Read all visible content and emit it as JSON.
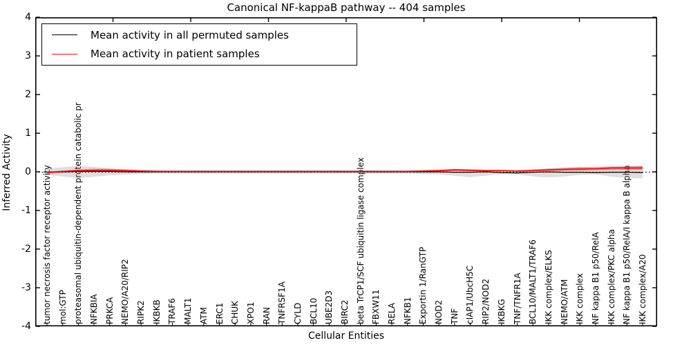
{
  "title": "Canonical NF-kappaB pathway -- 404 samples",
  "chart_data": {
    "type": "line",
    "title": "Canonical NF-kappaB pathway -- 404 samples",
    "xlabel": "Cellular Entities",
    "ylabel": "Inferred Activity",
    "ylim": [
      -4,
      4
    ],
    "yticks": [
      4,
      3,
      2,
      1,
      0,
      -1,
      -2,
      -3,
      -4
    ],
    "xticks_units": [
      5,
      10,
      15,
      20,
      25,
      30,
      35
    ],
    "grid": false,
    "legend_position": "upper left",
    "zero_line_style": "dotted",
    "background_color": "#ffffff",
    "categories": [
      "tumor necrosis factor receptor activity",
      "mol:GTP",
      "proteasomal ubiquitin-dependent protein catabolic pr",
      "NFKBIA",
      "PRKCA",
      "NEMO/A20/RIP2",
      "RIPK2",
      "IKBKB",
      "TRAF6",
      "MALT1",
      "ATM",
      "ERC1",
      "CHUK",
      "XPO1",
      "RAN",
      "TNFRSF1A",
      "CYLD",
      "BCL10",
      "UBE2D3",
      "BIRC2",
      "beta TrCP1/SCF ubiquitin ligase complex",
      "FBXW11",
      "RELA",
      "NFKB1",
      "Exportin 1/RanGTP",
      "NOD2",
      "TNF",
      "cIAP1/UbcH5C",
      "RIP2/NOD2",
      "IKBKG",
      "TNF/TNFR1A",
      "BCL10/MALT1/TRAF6",
      "IKK complex/ELKS",
      "NEMO/ATM",
      "IKK complex",
      "NF kappa B1 p50/RelA",
      "IKK complex/PKC alpha",
      "NF kappa B1 p50/RelA/I kappa B alpha",
      "IKK complex/A20"
    ],
    "series": [
      {
        "name": "Mean activity in all permuted samples",
        "color": "#000000",
        "values": [
          -0.01,
          0,
          0.01,
          0.01,
          0.01,
          0,
          0,
          0,
          0,
          0,
          0,
          0,
          0,
          0,
          0,
          0,
          0,
          0,
          0,
          0,
          0,
          0,
          0,
          0,
          0,
          0,
          -0.01,
          -0.01,
          0,
          -0.02,
          -0.03,
          -0.01,
          0,
          -0.01,
          -0.01,
          -0.02,
          -0.01,
          -0.01,
          -0.02
        ]
      },
      {
        "name": "Mean activity in patient samples",
        "color": "#ff0000",
        "values": [
          -0.02,
          0.01,
          0.03,
          0.04,
          0.04,
          0.03,
          0.02,
          0.01,
          0.01,
          0.01,
          0.01,
          0.01,
          0.01,
          0.01,
          0.01,
          0.01,
          0.01,
          0.01,
          0.01,
          0.01,
          0.01,
          0.01,
          0.01,
          0.01,
          0.02,
          0.03,
          0.05,
          0.04,
          0.03,
          0.03,
          0.02,
          0.03,
          0.05,
          0.06,
          0.07,
          0.08,
          0.1,
          0.1,
          0.1
        ]
      }
    ],
    "bands": [
      {
        "name": "permuted-samples-range",
        "color": "rgba(150,150,150,0.30)",
        "upper": [
          0.08,
          0.12,
          0.15,
          0.13,
          0.09,
          0.07,
          0.06,
          0.05,
          0.05,
          0.05,
          0.05,
          0.05,
          0.05,
          0.05,
          0.05,
          0.05,
          0.05,
          0.05,
          0.05,
          0.05,
          0.05,
          0.05,
          0.05,
          0.05,
          0.06,
          0.06,
          0.06,
          0.06,
          0.05,
          0.05,
          0.04,
          0.06,
          0.09,
          0.11,
          0.12,
          0.09,
          0.13,
          0.15,
          0.16
        ],
        "lower": [
          -0.08,
          -0.12,
          -0.16,
          -0.13,
          -0.09,
          -0.07,
          -0.06,
          -0.05,
          -0.05,
          -0.05,
          -0.05,
          -0.05,
          -0.05,
          -0.05,
          -0.05,
          -0.05,
          -0.05,
          -0.05,
          -0.05,
          -0.05,
          -0.05,
          -0.05,
          -0.05,
          -0.05,
          -0.06,
          -0.07,
          -0.1,
          -0.14,
          -0.1,
          -0.06,
          -0.07,
          -0.12,
          -0.15,
          -0.12,
          -0.08,
          -0.06,
          -0.13,
          -0.16,
          -0.17
        ]
      },
      {
        "name": "patient-samples-range",
        "color": "rgba(255,0,0,0.35)",
        "upper": [
          0.01,
          0.03,
          0.06,
          0.08,
          0.08,
          0.06,
          0.04,
          0.03,
          0.02,
          0.02,
          0.02,
          0.02,
          0.02,
          0.02,
          0.02,
          0.02,
          0.02,
          0.02,
          0.02,
          0.02,
          0.02,
          0.02,
          0.02,
          0.02,
          0.03,
          0.05,
          0.08,
          0.07,
          0.05,
          0.05,
          0.04,
          0.06,
          0.08,
          0.1,
          0.12,
          0.13,
          0.14,
          0.14,
          0.15
        ],
        "lower": [
          -0.05,
          -0.02,
          0,
          0.01,
          0.01,
          0,
          0,
          -0.01,
          -0.01,
          -0.01,
          -0.01,
          -0.01,
          -0.01,
          -0.01,
          -0.01,
          -0.01,
          -0.01,
          -0.01,
          -0.01,
          -0.01,
          -0.01,
          -0.01,
          -0.01,
          -0.01,
          0,
          0.01,
          0.02,
          0.01,
          0.01,
          0.01,
          0,
          0.01,
          0.02,
          0.03,
          0.03,
          0.04,
          0.05,
          0.05,
          0.05
        ]
      }
    ]
  },
  "legend": [
    {
      "label": "Mean activity in all permuted samples",
      "color": "#000000"
    },
    {
      "label": "Mean activity in patient samples",
      "color": "#ff0000"
    }
  ]
}
